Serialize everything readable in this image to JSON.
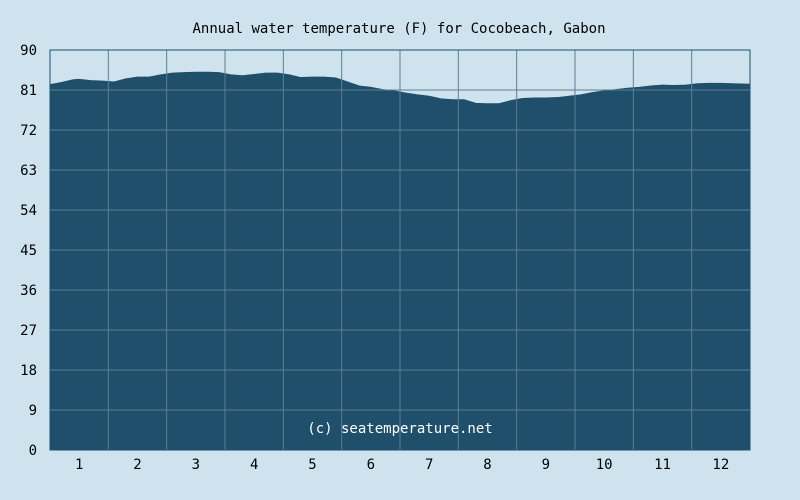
{
  "colors": {
    "background": "#cfe3ef",
    "plot_area": "#cfe3ef",
    "fill": "#1f4f6b",
    "grid": "#5b7f97",
    "axis": "#1f4f6b"
  },
  "chart_data": {
    "type": "area",
    "title": "Annual water temperature (F) for Cocobeach, Gabon",
    "xlabel": "",
    "ylabel": "",
    "ylim": [
      0,
      90
    ],
    "xlim": [
      0.5,
      12.5
    ],
    "y_ticks": [
      "0",
      "9",
      "18",
      "27",
      "36",
      "45",
      "54",
      "63",
      "72",
      "81",
      "90"
    ],
    "x_ticks": [
      "1",
      "2",
      "3",
      "4",
      "5",
      "6",
      "7",
      "8",
      "9",
      "10",
      "11",
      "12"
    ],
    "grid": true,
    "legend": "none",
    "watermark": "(c) seatemperature.net",
    "series": [
      {
        "x": [
          0.5,
          0.7,
          0.9,
          1.0,
          1.2,
          1.4,
          1.6,
          1.8,
          2.0,
          2.2,
          2.4,
          2.6,
          2.8,
          3.0,
          3.2,
          3.4,
          3.6,
          3.8,
          4.0,
          4.2,
          4.4,
          4.6,
          4.8,
          5.0,
          5.2,
          5.4,
          5.6,
          5.8,
          6.0,
          6.2,
          6.4,
          6.6,
          6.8,
          7.0,
          7.2,
          7.4,
          7.6,
          7.8,
          8.0,
          8.2,
          8.4,
          8.6,
          8.8,
          9.0,
          9.2,
          9.4,
          9.6,
          9.8,
          10.0,
          10.2,
          10.4,
          10.6,
          10.8,
          11.0,
          11.2,
          11.4,
          11.6,
          11.8,
          12.0,
          12.2,
          12.5
        ],
        "values": [
          82.2,
          82.7,
          83.3,
          83.4,
          83.1,
          83.0,
          82.8,
          83.5,
          83.9,
          83.9,
          84.4,
          84.8,
          84.9,
          85.0,
          85.0,
          84.9,
          84.4,
          84.2,
          84.5,
          84.8,
          84.8,
          84.4,
          83.8,
          83.9,
          83.9,
          83.7,
          82.8,
          81.9,
          81.6,
          81.1,
          80.8,
          80.3,
          79.9,
          79.6,
          79.0,
          78.8,
          78.8,
          78.0,
          77.9,
          77.9,
          78.6,
          79.1,
          79.2,
          79.2,
          79.3,
          79.6,
          79.9,
          80.4,
          80.8,
          81.1,
          81.4,
          81.6,
          81.9,
          82.1,
          82.0,
          82.1,
          82.4,
          82.5,
          82.5,
          82.4,
          82.3
        ]
      }
    ]
  }
}
